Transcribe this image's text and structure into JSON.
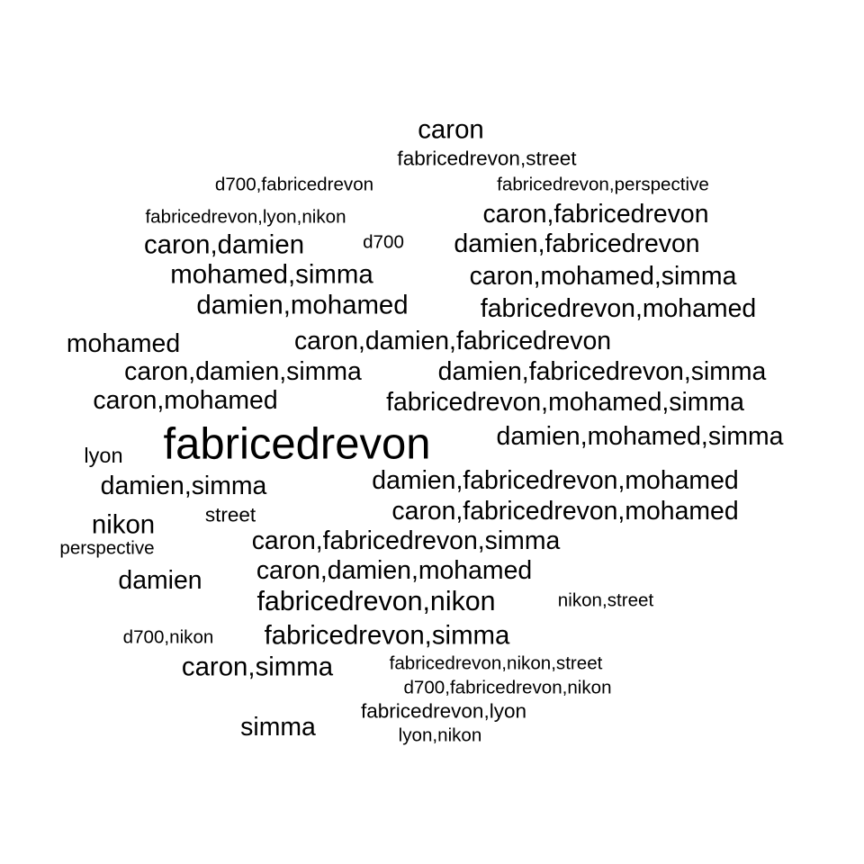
{
  "words": [
    "caron",
    "fabricedrevon,street",
    "d700,fabricedrevon",
    "fabricedrevon,perspective",
    "fabricedrevon,lyon,nikon",
    "caron,fabricedrevon",
    "caron,damien",
    "d700",
    "damien,fabricedrevon",
    "mohamed,simma",
    "caron,mohamed,simma",
    "damien,mohamed",
    "fabricedrevon,mohamed",
    "mohamed",
    "caron,damien,fabricedrevon",
    "caron,damien,simma",
    "damien,fabricedrevon,simma",
    "caron,mohamed",
    "fabricedrevon,mohamed,simma",
    "fabricedrevon",
    "damien,mohamed,simma",
    "lyon",
    "damien,simma",
    "damien,fabricedrevon,mohamed",
    "nikon",
    "street",
    "caron,fabricedrevon,mohamed",
    "perspective",
    "caron,fabricedrevon,simma",
    "damien",
    "caron,damien,mohamed",
    "fabricedrevon,nikon",
    "nikon,street",
    "d700,nikon",
    "fabricedrevon,simma",
    "caron,simma",
    "fabricedrevon,nikon,street",
    "d700,fabricedrevon,nikon",
    "simma",
    "fabricedrevon,lyon",
    "lyon,nikon"
  ]
}
